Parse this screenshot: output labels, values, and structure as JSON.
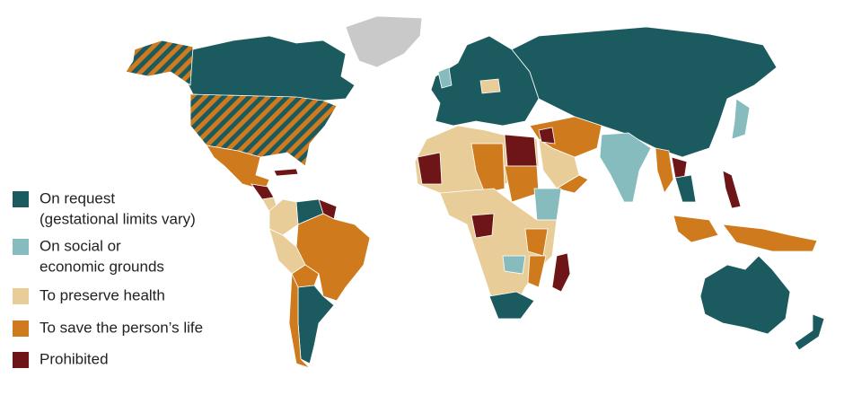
{
  "legend": [
    {
      "lines": [
        "On request",
        "(gestational limits vary)"
      ],
      "color": "#1b5b5f"
    },
    {
      "lines": [
        "On social or",
        "economic grounds"
      ],
      "color": "#86bcbd"
    },
    {
      "lines": [
        "To preserve health"
      ],
      "color": "#e9cd98"
    },
    {
      "lines": [
        "To save the person’s life"
      ],
      "color": "#cf7a1d"
    },
    {
      "lines": [
        "Prohibited"
      ],
      "color": "#6e1518"
    }
  ]
}
